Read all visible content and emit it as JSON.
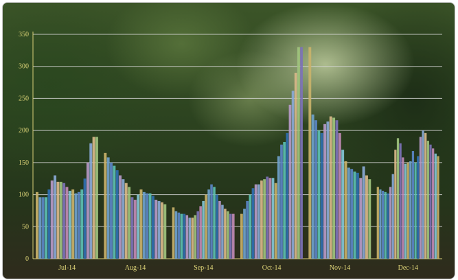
{
  "chart_data": {
    "type": "bar",
    "title": "",
    "xlabel": "",
    "ylabel": "",
    "ylim": [
      0,
      350
    ],
    "yticks": [
      0,
      50,
      100,
      150,
      200,
      250,
      300,
      350
    ],
    "grid": true,
    "legend": "none",
    "categories": [
      "Jul-14",
      "Aug-14",
      "Sep-14",
      "Oct-14",
      "Nov-14",
      "Dec-14"
    ],
    "groups": [
      {
        "category": "Jul-14",
        "values": [
          104,
          96,
          96,
          96,
          108,
          122,
          130,
          120,
          120,
          118,
          112,
          106,
          108,
          102,
          104,
          108,
          125,
          150,
          180,
          190,
          190
        ]
      },
      {
        "category": "Aug-14",
        "values": [
          165,
          158,
          150,
          145,
          138,
          130,
          124,
          118,
          112,
          96,
          92,
          100,
          108,
          104,
          102,
          102,
          98,
          92,
          90,
          88,
          85
        ]
      },
      {
        "category": "Sep-14",
        "values": [
          80,
          74,
          72,
          70,
          70,
          68,
          64,
          64,
          68,
          74,
          82,
          90,
          100,
          108,
          116,
          112,
          100,
          90,
          84,
          78,
          74,
          70,
          70
        ]
      },
      {
        "category": "Oct-14",
        "values": [
          70,
          78,
          90,
          100,
          110,
          116,
          116,
          122,
          124,
          128,
          126,
          126,
          118,
          160,
          178,
          182,
          196,
          240,
          262,
          290,
          330,
          330
        ]
      },
      {
        "category": "Nov-14",
        "values": [
          330,
          225,
          216,
          200,
          196,
          210,
          214,
          222,
          220,
          216,
          196,
          170,
          152,
          142,
          140,
          136,
          134,
          126,
          144,
          130,
          124
        ]
      },
      {
        "category": "Dec-14",
        "values": [
          112,
          108,
          106,
          104,
          102,
          112,
          132,
          170,
          188,
          180,
          158,
          148,
          150,
          152,
          168,
          150,
          160,
          190,
          200,
          196,
          184,
          178,
          172,
          164,
          160
        ]
      }
    ],
    "palette": [
      "#c9b26a",
      "#6fa2cc",
      "#5b86c6",
      "#5cc0b2",
      "#2f6fb0",
      "#b79ac8",
      "#8aa9d6",
      "#d9b98a",
      "#9fc37e",
      "#7d72b8",
      "#c08ab4",
      "#82c6d6"
    ]
  }
}
